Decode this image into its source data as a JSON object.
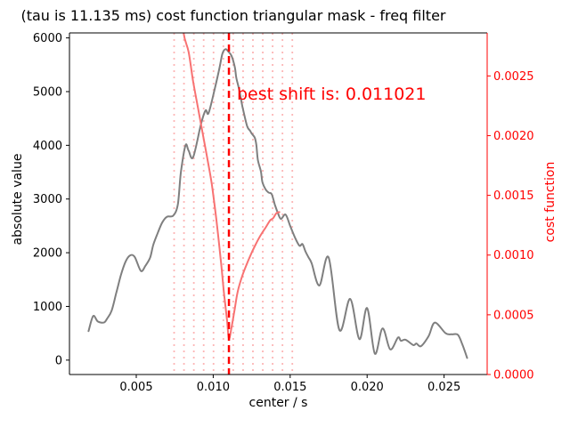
{
  "chart_data": {
    "type": "line",
    "title": "(tau is 11.135 ms) cost function triangular mask - freq filter",
    "xlabel": "center / s",
    "ylabel_left": "absolute value",
    "ylabel_right": "cost function",
    "annotation": "best shift is: 0.011021",
    "best_shift": 0.011021,
    "xlim": [
      0.00066,
      0.0278
    ],
    "ylim_left": [
      -268,
      6093
    ],
    "ylim_right": [
      0,
      0.00286
    ],
    "grid": false,
    "xticks": [
      0.005,
      0.01,
      0.015,
      0.02,
      0.025
    ],
    "xtick_labels": [
      "0.005",
      "0.010",
      "0.015",
      "0.020",
      "0.025"
    ],
    "yticks_left": [
      0,
      1000,
      2000,
      3000,
      4000,
      5000,
      6000
    ],
    "ytick_left_labels": [
      "0",
      "1000",
      "2000",
      "3000",
      "4000",
      "5000",
      "6000"
    ],
    "yticks_right": [
      0.0,
      0.0005,
      0.001,
      0.0015,
      0.002,
      0.0025
    ],
    "ytick_right_labels": [
      "0.0000",
      "0.0005",
      "0.0010",
      "0.0015",
      "0.0020",
      "0.0025"
    ],
    "colors": {
      "signal": "#7f7f7f",
      "cost": "#f87272",
      "mask": "#fcb6b6",
      "best_shift": "#ff0000",
      "right_axis": "#ff0000",
      "left_axis": "#000000",
      "annotation": "#ff0000"
    },
    "mask_lines": [
      0.00746,
      0.0081,
      0.00874,
      0.00938,
      0.01002,
      0.01066,
      0.0113,
      0.01194,
      0.01258,
      0.01322,
      0.01386,
      0.0145,
      0.01514
    ],
    "series": [
      {
        "name": "absolute value",
        "axis": "left",
        "color": "#7f7f7f",
        "data": [
          [
            0.0019,
            540
          ],
          [
            0.0022,
            820
          ],
          [
            0.0025,
            720
          ],
          [
            0.0029,
            700
          ],
          [
            0.0031,
            770
          ],
          [
            0.0034,
            920
          ],
          [
            0.0037,
            1250
          ],
          [
            0.004,
            1580
          ],
          [
            0.0043,
            1830
          ],
          [
            0.0046,
            1950
          ],
          [
            0.0049,
            1920
          ],
          [
            0.0053,
            1660
          ],
          [
            0.0056,
            1760
          ],
          [
            0.0059,
            1910
          ],
          [
            0.0061,
            2140
          ],
          [
            0.0064,
            2370
          ],
          [
            0.0067,
            2570
          ],
          [
            0.007,
            2670
          ],
          [
            0.0074,
            2690
          ],
          [
            0.0077,
            2900
          ],
          [
            0.0079,
            3500
          ],
          [
            0.0082,
            4000
          ],
          [
            0.0084,
            3900
          ],
          [
            0.0087,
            3780
          ],
          [
            0.0092,
            4390
          ],
          [
            0.0095,
            4650
          ],
          [
            0.0097,
            4600
          ],
          [
            0.0101,
            5050
          ],
          [
            0.0104,
            5430
          ],
          [
            0.0106,
            5710
          ],
          [
            0.0108,
            5790
          ],
          [
            0.011,
            5740
          ],
          [
            0.0112,
            5660
          ],
          [
            0.0114,
            5460
          ],
          [
            0.0115,
            5260
          ],
          [
            0.0117,
            5020
          ],
          [
            0.0119,
            4720
          ],
          [
            0.0122,
            4360
          ],
          [
            0.0124,
            4270
          ],
          [
            0.0125,
            4220
          ],
          [
            0.0127,
            4140
          ],
          [
            0.0128,
            4010
          ],
          [
            0.0129,
            3730
          ],
          [
            0.0131,
            3510
          ],
          [
            0.0132,
            3310
          ],
          [
            0.0134,
            3180
          ],
          [
            0.0136,
            3120
          ],
          [
            0.0138,
            3090
          ],
          [
            0.014,
            2900
          ],
          [
            0.0142,
            2740
          ],
          [
            0.0144,
            2630
          ],
          [
            0.0147,
            2710
          ],
          [
            0.015,
            2500
          ],
          [
            0.0153,
            2290
          ],
          [
            0.0156,
            2130
          ],
          [
            0.0158,
            2160
          ],
          [
            0.016,
            2020
          ],
          [
            0.0162,
            1910
          ],
          [
            0.0164,
            1800
          ],
          [
            0.0169,
            1390
          ],
          [
            0.0175,
            1910
          ],
          [
            0.0182,
            560
          ],
          [
            0.0189,
            1140
          ],
          [
            0.0195,
            390
          ],
          [
            0.02,
            970
          ],
          [
            0.0205,
            120
          ],
          [
            0.021,
            590
          ],
          [
            0.0215,
            200
          ],
          [
            0.022,
            420
          ],
          [
            0.0222,
            360
          ],
          [
            0.0225,
            380
          ],
          [
            0.023,
            280
          ],
          [
            0.0232,
            310
          ],
          [
            0.0235,
            260
          ],
          [
            0.024,
            450
          ],
          [
            0.0244,
            700
          ],
          [
            0.0251,
            500
          ],
          [
            0.0255,
            480
          ],
          [
            0.0259,
            470
          ],
          [
            0.0262,
            280
          ],
          [
            0.0265,
            40
          ]
        ]
      },
      {
        "name": "cost function",
        "axis": "right",
        "color": "#f87272",
        "data": [
          [
            0.0078,
            0.0032
          ],
          [
            0.00807,
            0.00286
          ],
          [
            0.0084,
            0.0027
          ],
          [
            0.0087,
            0.00245
          ],
          [
            0.009,
            0.00224
          ],
          [
            0.0093,
            0.00203
          ],
          [
            0.0096,
            0.00182
          ],
          [
            0.0099,
            0.0016
          ],
          [
            0.0102,
            0.0013
          ],
          [
            0.0105,
            0.00095
          ],
          [
            0.0107,
            0.00068
          ],
          [
            0.0109,
            0.00045
          ],
          [
            0.011021,
            0.0003
          ],
          [
            0.0112,
            0.0004
          ],
          [
            0.0114,
            0.00055
          ],
          [
            0.0116,
            0.0007
          ],
          [
            0.0119,
            0.00083
          ],
          [
            0.0122,
            0.00093
          ],
          [
            0.0125,
            0.00102
          ],
          [
            0.0128,
            0.0011
          ],
          [
            0.0131,
            0.00117
          ],
          [
            0.0134,
            0.00123
          ],
          [
            0.0137,
            0.00129
          ],
          [
            0.0139,
            0.00131
          ],
          [
            0.0141,
            0.00135
          ],
          [
            0.0143,
            0.00136
          ]
        ]
      }
    ]
  }
}
